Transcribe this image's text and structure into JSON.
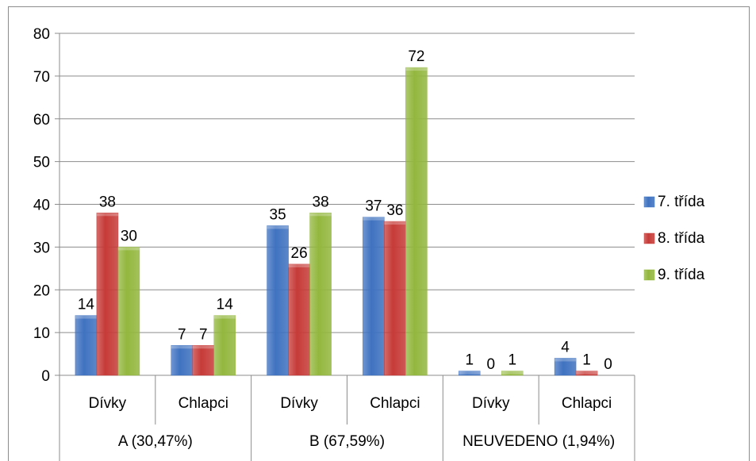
{
  "chart_data": {
    "type": "bar",
    "title": "",
    "xlabel": "",
    "ylabel": "",
    "ylim": [
      0,
      80
    ],
    "yticks": [
      0,
      10,
      20,
      30,
      40,
      50,
      60,
      70,
      80
    ],
    "grid": true,
    "legend_position": "right",
    "groups": [
      {
        "label": "A (30,47%)",
        "categories": [
          "Dívky",
          "Chlapci"
        ]
      },
      {
        "label": "B (67,59%)",
        "categories": [
          "Dívky",
          "Chlapci"
        ]
      },
      {
        "label": "NEUVEDENO (1,94%)",
        "categories": [
          "Dívky",
          "Chlapci"
        ]
      }
    ],
    "categories": [
      "Dívky",
      "Chlapci",
      "Dívky",
      "Chlapci",
      "Dívky",
      "Chlapci"
    ],
    "series": [
      {
        "name": "7. třída",
        "color": "#3f72c0",
        "values": [
          14,
          7,
          35,
          37,
          1,
          4
        ]
      },
      {
        "name": "8. třída",
        "color": "#c63b38",
        "values": [
          38,
          7,
          26,
          36,
          0,
          1
        ]
      },
      {
        "name": "9. třída",
        "color": "#93b73e",
        "values": [
          30,
          14,
          38,
          72,
          1,
          0
        ]
      }
    ]
  }
}
